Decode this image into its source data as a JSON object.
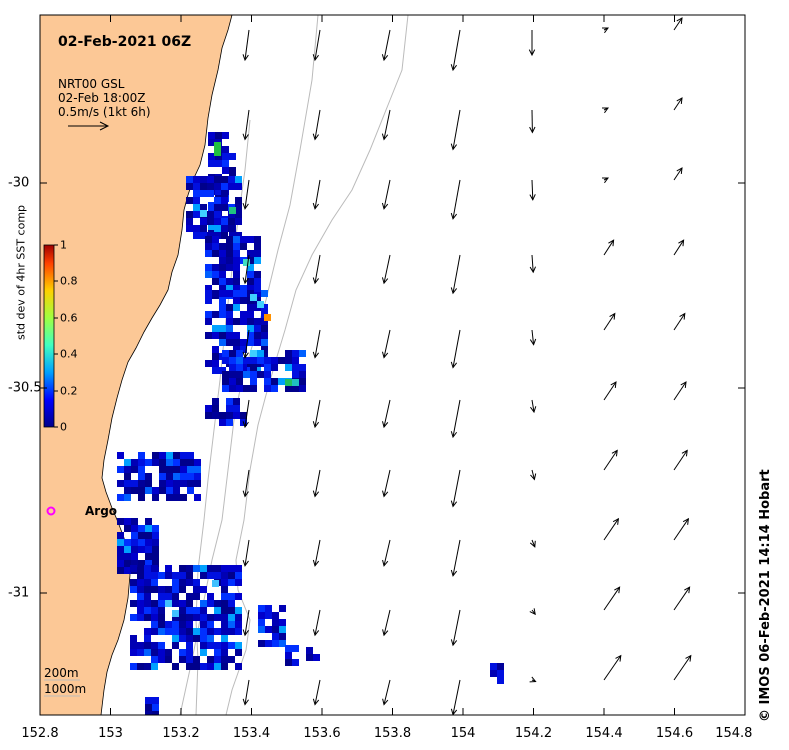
{
  "title": "02-Feb-2021 06Z",
  "legend": {
    "line1": "NRT00 GSL",
    "line2": "02-Feb 18:00Z",
    "line3": "0.5m/s (1kt 6h)"
  },
  "colorbar": {
    "title": "std dev of 4hr SST comp",
    "ticks": [
      "1",
      "0.8",
      "0.6",
      "0.4",
      "0.2",
      "0"
    ]
  },
  "axes": {
    "x_ticks": [
      "152.8",
      "153",
      "153.2",
      "153.4",
      "153.6",
      "153.8",
      "154",
      "154.2",
      "154.4",
      "154.6",
      "154.8"
    ],
    "y_ticks": [
      "-30",
      "-30.5",
      "-31"
    ]
  },
  "argo_label": "Argo",
  "depth_labels": {
    "shallow": "200m",
    "deep": "1000m"
  },
  "credit": "© IMOS 06-Feb-2021 14:14 Hobart",
  "colors": {
    "land": "#fcc896",
    "frame": "#000000",
    "argo": "#ff00ff"
  }
}
